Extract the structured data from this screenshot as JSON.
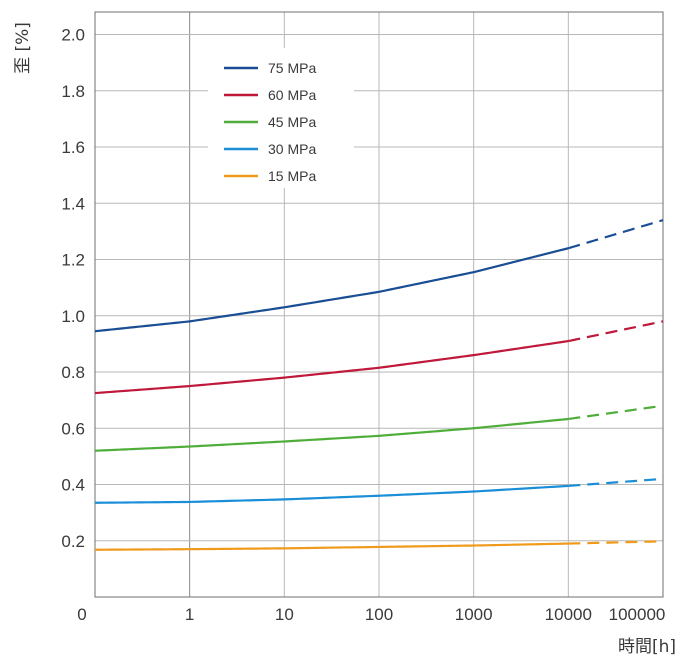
{
  "chart_data": {
    "type": "line",
    "title": "",
    "xlabel": "時間[h]",
    "ylabel": "歪 [%]",
    "x_scale": "log",
    "x_ticks": [
      "0",
      "1",
      "10",
      "100",
      "1000",
      "10000",
      "100000"
    ],
    "x_tick_values": [
      0.1,
      1,
      10,
      100,
      1000,
      10000,
      100000
    ],
    "xlim": [
      0.1,
      100000
    ],
    "y_ticks": [
      "0.2",
      "0.4",
      "0.6",
      "0.8",
      "1.0",
      "1.2",
      "1.4",
      "1.6",
      "1.8",
      "2.0"
    ],
    "y_tick_values": [
      0.2,
      0.4,
      0.6,
      0.8,
      1.0,
      1.2,
      1.4,
      1.6,
      1.8,
      2.0
    ],
    "ylim": [
      0.0,
      2.08
    ],
    "grid": true,
    "legend_position": "top-left",
    "measured_until": 10000,
    "extrapolation_style": "dashed",
    "series": [
      {
        "name": "75 MPa",
        "color": "#1a4e94",
        "x": [
          0.1,
          1,
          10,
          100,
          1000,
          10000,
          100000
        ],
        "y": [
          0.945,
          0.98,
          1.03,
          1.085,
          1.155,
          1.24,
          1.34
        ]
      },
      {
        "name": "60 MPa",
        "color": "#c0183a",
        "x": [
          0.1,
          1,
          10,
          100,
          1000,
          10000,
          100000
        ],
        "y": [
          0.725,
          0.75,
          0.78,
          0.815,
          0.86,
          0.91,
          0.98
        ]
      },
      {
        "name": "45 MPa",
        "color": "#4fae3a",
        "x": [
          0.1,
          1,
          10,
          100,
          1000,
          10000,
          100000
        ],
        "y": [
          0.52,
          0.535,
          0.553,
          0.573,
          0.6,
          0.633,
          0.68
        ]
      },
      {
        "name": "30 MPa",
        "color": "#1a8fd8",
        "x": [
          0.1,
          1,
          10,
          100,
          1000,
          10000,
          100000
        ],
        "y": [
          0.335,
          0.338,
          0.347,
          0.36,
          0.375,
          0.395,
          0.42
        ]
      },
      {
        "name": "15 MPa",
        "color": "#f09a1c",
        "x": [
          0.1,
          1,
          10,
          100,
          1000,
          10000,
          100000
        ],
        "y": [
          0.168,
          0.17,
          0.173,
          0.178,
          0.183,
          0.19,
          0.198
        ]
      }
    ]
  }
}
